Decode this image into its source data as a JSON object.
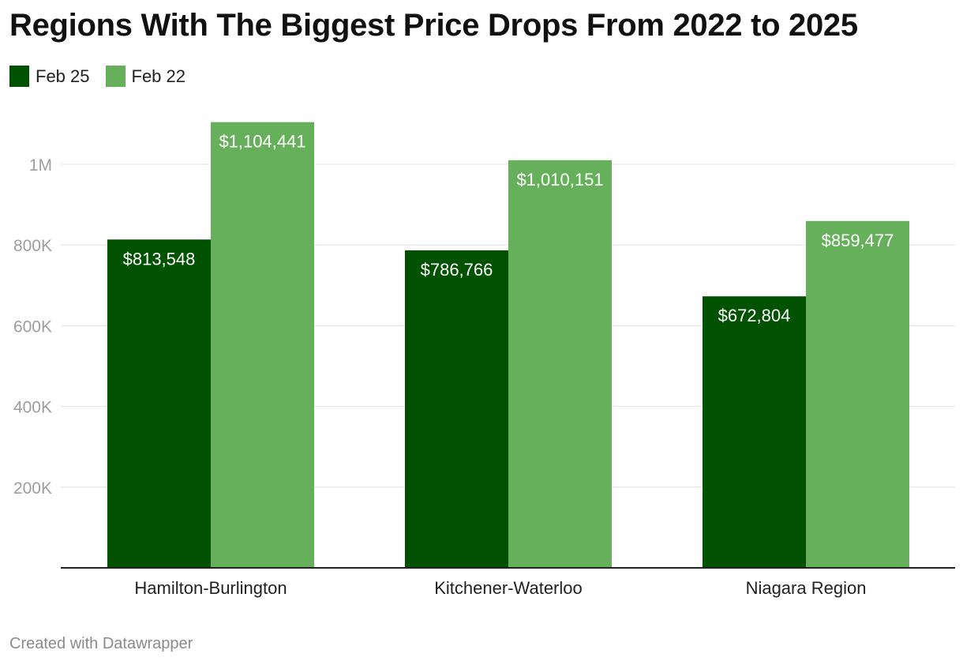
{
  "title": "Regions With The Biggest Price Drops From 2022 to 2025",
  "footer": "Created with Datawrapper",
  "legend": [
    {
      "label": "Feb 25",
      "color": "#005100"
    },
    {
      "label": "Feb 22",
      "color": "#67b05b"
    }
  ],
  "chart_data": {
    "type": "bar",
    "title": "Regions With The Biggest Price Drops From 2022 to 2025",
    "xlabel": "",
    "ylabel": "",
    "categories": [
      "Hamilton-Burlington",
      "Kitchener-Waterloo",
      "Niagara Region"
    ],
    "series": [
      {
        "name": "Feb 25",
        "color": "#005100",
        "values": [
          813548,
          786766,
          672804
        ],
        "labels": [
          "$813,548",
          "$786,766",
          "$672,804"
        ]
      },
      {
        "name": "Feb 22",
        "color": "#67b05b",
        "values": [
          1104441,
          1010151,
          859477
        ],
        "labels": [
          "$1,104,441",
          "$1,010,151",
          "$859,477"
        ]
      }
    ],
    "yticks": [
      200000,
      400000,
      600000,
      800000,
      1000000
    ],
    "ytick_labels": [
      "200K",
      "400K",
      "600K",
      "800K",
      "1M"
    ],
    "ylim": [
      0,
      1150000
    ],
    "grid": true,
    "legend_position": "top-left"
  }
}
